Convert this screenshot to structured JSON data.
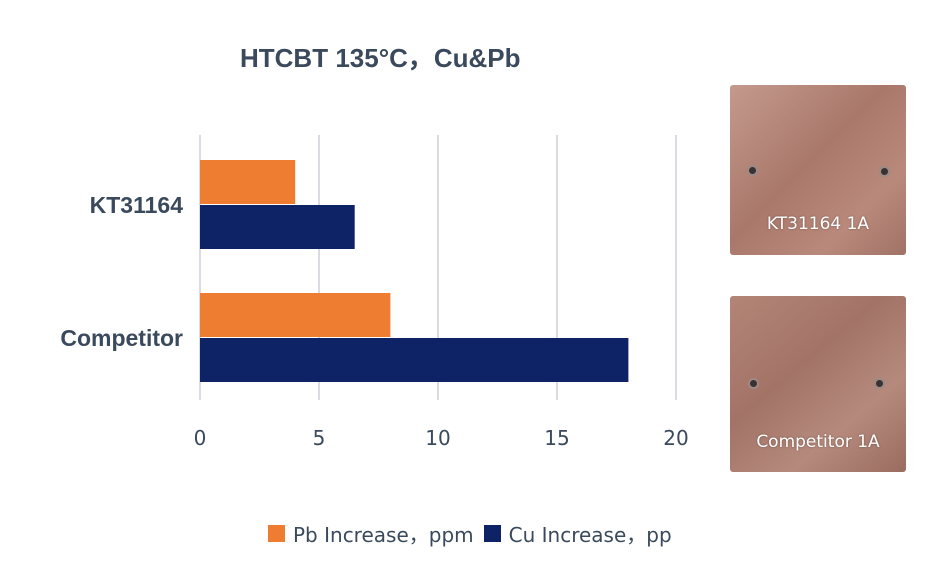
{
  "chart_data": {
    "type": "bar",
    "orientation": "horizontal",
    "title": "HTCBT 135°C，Cu&Pb",
    "categories": [
      "KT31164",
      "Competitor"
    ],
    "series": [
      {
        "name": "Pb Increase，ppm",
        "values": [
          4,
          8
        ],
        "color": "#ee7d31"
      },
      {
        "name": "Cu Increase，pp",
        "values": [
          6.5,
          18
        ],
        "color": "#0d2366"
      }
    ],
    "xlim": [
      0,
      20
    ],
    "xticks": [
      "0",
      "5",
      "10",
      "15",
      "20"
    ],
    "grid": true,
    "legend_position": "bottom"
  },
  "photos": [
    {
      "caption": "KT31164 1A"
    },
    {
      "caption": "Competitor 1A"
    }
  ],
  "colors": {
    "title": "#3a4a5c",
    "axis_text": "#3a4a5c",
    "grid": "#d9dde3",
    "copper": "#b08478"
  }
}
